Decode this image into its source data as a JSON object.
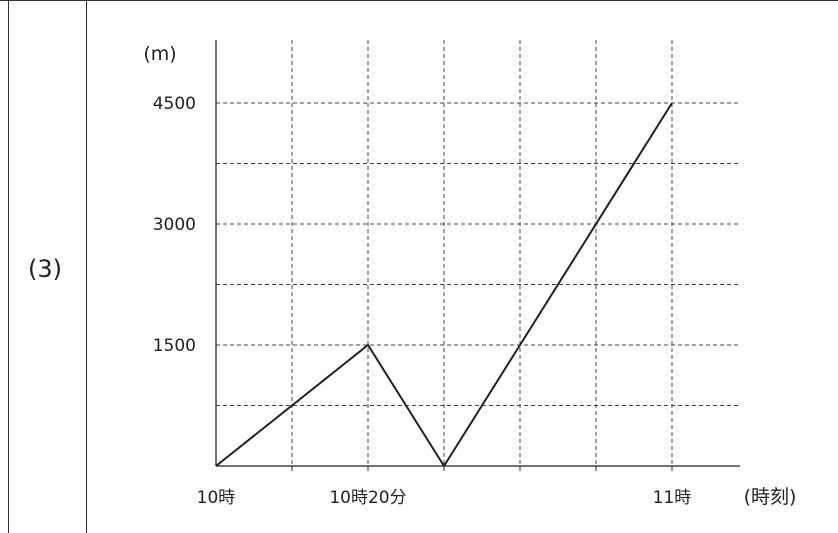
{
  "problem": {
    "label": "(3)"
  },
  "chart_data": {
    "type": "line",
    "ylabel": "(m)",
    "xlabel": "(時刻)",
    "x_unit": "minutes after 10時",
    "y_ticks": [
      {
        "value": 1500,
        "label": "1500"
      },
      {
        "value": 3000,
        "label": "3000"
      },
      {
        "value": 4500,
        "label": "4500"
      }
    ],
    "x_ticks": [
      {
        "value": 0,
        "label": "10時"
      },
      {
        "value": 20,
        "label": "10時20分"
      },
      {
        "value": 60,
        "label": "11時"
      }
    ],
    "x_gridlines": [
      10,
      20,
      30,
      40,
      50,
      60
    ],
    "y_gridlines": [
      750,
      1500,
      2250,
      3000,
      3750,
      4500
    ],
    "xlim": [
      0,
      69
    ],
    "ylim": [
      0,
      5450
    ],
    "grid": true,
    "series": [
      {
        "x": [
          0,
          20,
          30,
          60
        ],
        "y": [
          0,
          1500,
          0,
          4500
        ],
        "color": "#222222"
      }
    ]
  }
}
